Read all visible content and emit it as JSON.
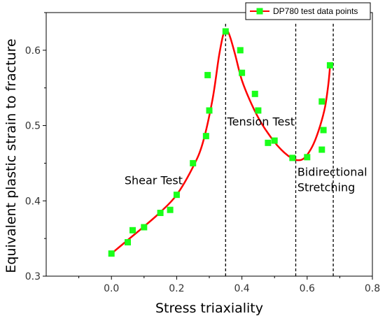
{
  "chart_data": {
    "type": "scatter",
    "xlabel": "Stress triaxiality",
    "ylabel": "Equivalent plastic strain to fracture",
    "xlim": [
      -0.2,
      0.8
    ],
    "ylim": [
      0.3,
      0.65
    ],
    "xticks": [
      "0.0",
      "0.2",
      "0.4",
      "0.6",
      "0.8"
    ],
    "yticks": [
      "0.3",
      "0.4",
      "0.5",
      "0.6"
    ],
    "grid": false,
    "legend": {
      "position": "top-right",
      "entries": [
        "DP780 test data points"
      ]
    },
    "colors": {
      "points": "#1aff1a",
      "curve": "#ff0000",
      "axis": "#000000"
    },
    "series": [
      {
        "name": "DP780 test data points",
        "x": [
          0.0,
          0.05,
          0.065,
          0.1,
          0.15,
          0.18,
          0.2,
          0.25,
          0.29,
          0.295,
          0.3,
          0.35,
          0.395,
          0.4,
          0.44,
          0.45,
          0.48,
          0.5,
          0.555,
          0.6,
          0.645,
          0.65,
          0.645,
          0.67
        ],
        "y": [
          0.33,
          0.345,
          0.361,
          0.365,
          0.384,
          0.388,
          0.408,
          0.45,
          0.486,
          0.567,
          0.52,
          0.625,
          0.6,
          0.57,
          0.542,
          0.52,
          0.477,
          0.48,
          0.457,
          0.458,
          0.468,
          0.494,
          0.532,
          0.58
        ]
      }
    ],
    "fit_curve": {
      "x": [
        0.0,
        0.05,
        0.1,
        0.15,
        0.2,
        0.25,
        0.28,
        0.31,
        0.33,
        0.345,
        0.355,
        0.365,
        0.38,
        0.4,
        0.43,
        0.46,
        0.5,
        0.53,
        0.555,
        0.57,
        0.585,
        0.6,
        0.62,
        0.64,
        0.655,
        0.665,
        0.67
      ],
      "y": [
        0.33,
        0.348,
        0.366,
        0.385,
        0.408,
        0.445,
        0.477,
        0.535,
        0.593,
        0.624,
        0.626,
        0.616,
        0.593,
        0.56,
        0.528,
        0.503,
        0.478,
        0.464,
        0.456,
        0.454,
        0.455,
        0.461,
        0.476,
        0.5,
        0.525,
        0.555,
        0.578
      ]
    },
    "vlines": [
      0.35,
      0.565,
      0.68
    ],
    "annotations": [
      {
        "text": "Shear Test",
        "x": 0.04,
        "y": 0.422
      },
      {
        "text": "Tension Test",
        "x": 0.355,
        "y": 0.5
      },
      {
        "text": "Bidirectional",
        "x": 0.57,
        "y": 0.433
      },
      {
        "text": "Stretching",
        "x": 0.57,
        "y": 0.413
      }
    ]
  }
}
